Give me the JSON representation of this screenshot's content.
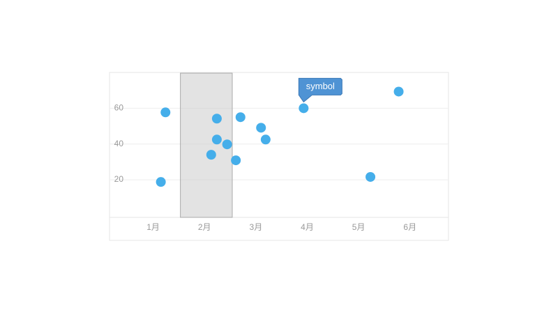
{
  "chart_data": {
    "type": "scatter",
    "x": [
      1.24,
      1.15,
      2.24,
      2.24,
      2.13,
      2.44,
      2.61,
      2.7,
      3.1,
      3.19,
      3.93,
      5.23,
      5.78
    ],
    "values": [
      57.7,
      18.8,
      54.2,
      42.5,
      34.0,
      39.8,
      30.9,
      55.0,
      49.1,
      42.5,
      60,
      21.6,
      69.3
    ],
    "color": "#45aeea",
    "xlim": [
      0.15,
      6.75
    ],
    "xticks": [
      {
        "value": 1,
        "label": "1月"
      },
      {
        "value": 2,
        "label": "2月"
      },
      {
        "value": 3,
        "label": "3月"
      },
      {
        "value": 4,
        "label": "4月"
      },
      {
        "value": 5,
        "label": "5月"
      },
      {
        "value": 6,
        "label": "6月"
      }
    ],
    "ylim": [
      -1,
      80
    ],
    "yticks": [
      20,
      40,
      60
    ],
    "grid": true,
    "highlight_range": [
      1.53,
      2.54
    ],
    "annotations": [
      {
        "text": "symbol",
        "x": 3.93,
        "y": 60
      }
    ]
  }
}
